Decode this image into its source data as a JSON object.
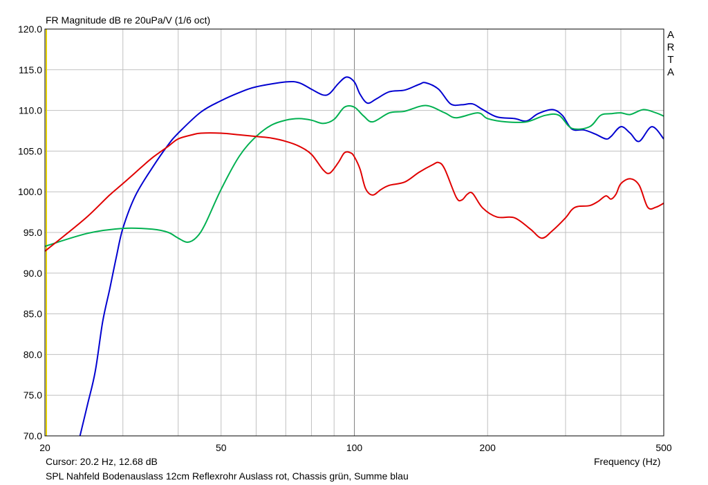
{
  "header": {
    "title": "FR Magnitude dB re 20uPa/V (1/6 oct)"
  },
  "footer": {
    "cursor": "Cursor: 20.2 Hz, 12.68 dB",
    "caption": "SPL Nahfeld Bodenauslass 12cm Reflexrohr Auslass rot, Chassis grün, Summe blau"
  },
  "watermark": [
    "A",
    "R",
    "T",
    "A"
  ],
  "chart_data": {
    "type": "line",
    "title": "FR Magnitude dB re 20uPa/V (1/6 oct)",
    "xlabel": "Frequency (Hz)",
    "ylabel": "",
    "xscale": "log",
    "xlim": [
      20,
      500
    ],
    "ylim": [
      70,
      120
    ],
    "grid": true,
    "x_ticks": [
      {
        "value": 20,
        "label": "20"
      },
      {
        "value": 50,
        "label": "50"
      },
      {
        "value": 100,
        "label": "100"
      },
      {
        "value": 200,
        "label": "200"
      },
      {
        "value": 500,
        "label": "500"
      }
    ],
    "y_ticks": [
      {
        "value": 120,
        "label": "120.0"
      },
      {
        "value": 115,
        "label": "115.0"
      },
      {
        "value": 110,
        "label": "110.0"
      },
      {
        "value": 105,
        "label": "105.0"
      },
      {
        "value": 100,
        "label": "100.0"
      },
      {
        "value": 95,
        "label": "95.0"
      },
      {
        "value": 90,
        "label": "90.0"
      },
      {
        "value": 85,
        "label": "85.0"
      },
      {
        "value": 80,
        "label": "80.0"
      },
      {
        "value": 75,
        "label": "75.0"
      },
      {
        "value": 70,
        "label": "70.0"
      }
    ],
    "colors": {
      "grid": "#c0c0c0",
      "axis": "#000000",
      "cursor_line": "#e6d200"
    },
    "series": [
      {
        "color": "#0000d0",
        "points": [
          [
            24,
            70
          ],
          [
            25,
            74
          ],
          [
            26,
            78
          ],
          [
            27,
            84
          ],
          [
            28,
            88
          ],
          [
            29,
            92
          ],
          [
            30,
            95.5
          ],
          [
            32,
            99.5
          ],
          [
            35,
            103
          ],
          [
            38,
            105.8
          ],
          [
            40,
            107.2
          ],
          [
            45,
            109.8
          ],
          [
            50,
            111.2
          ],
          [
            55,
            112.2
          ],
          [
            60,
            112.9
          ],
          [
            70,
            113.5
          ],
          [
            75,
            113.4
          ],
          [
            80,
            112.6
          ],
          [
            85,
            111.9
          ],
          [
            88,
            112.1
          ],
          [
            92,
            113.3
          ],
          [
            96,
            114.1
          ],
          [
            100,
            113.5
          ],
          [
            103,
            112
          ],
          [
            107,
            110.9
          ],
          [
            112,
            111.4
          ],
          [
            120,
            112.3
          ],
          [
            130,
            112.5
          ],
          [
            140,
            113.2
          ],
          [
            145,
            113.4
          ],
          [
            155,
            112.6
          ],
          [
            165,
            110.8
          ],
          [
            175,
            110.7
          ],
          [
            185,
            110.8
          ],
          [
            195,
            110.1
          ],
          [
            210,
            109.2
          ],
          [
            230,
            109
          ],
          [
            245,
            108.7
          ],
          [
            260,
            109.6
          ],
          [
            280,
            110.1
          ],
          [
            295,
            109.4
          ],
          [
            310,
            107.7
          ],
          [
            330,
            107.6
          ],
          [
            350,
            107.1
          ],
          [
            370,
            106.5
          ],
          [
            380,
            106.8
          ],
          [
            400,
            108
          ],
          [
            420,
            107.2
          ],
          [
            440,
            106.2
          ],
          [
            470,
            108
          ],
          [
            500,
            106.5
          ]
        ]
      },
      {
        "color": "#00b050",
        "points": [
          [
            20,
            93.3
          ],
          [
            25,
            94.9
          ],
          [
            30,
            95.5
          ],
          [
            35,
            95.4
          ],
          [
            38,
            95
          ],
          [
            40,
            94.3
          ],
          [
            42,
            93.8
          ],
          [
            44,
            94.4
          ],
          [
            46,
            96
          ],
          [
            50,
            100.3
          ],
          [
            55,
            104.4
          ],
          [
            60,
            106.8
          ],
          [
            65,
            108.2
          ],
          [
            70,
            108.8
          ],
          [
            75,
            109
          ],
          [
            80,
            108.8
          ],
          [
            85,
            108.4
          ],
          [
            90,
            108.9
          ],
          [
            95,
            110.4
          ],
          [
            100,
            110.4
          ],
          [
            105,
            109.3
          ],
          [
            110,
            108.6
          ],
          [
            120,
            109.7
          ],
          [
            130,
            109.9
          ],
          [
            145,
            110.6
          ],
          [
            160,
            109.7
          ],
          [
            170,
            109.1
          ],
          [
            190,
            109.7
          ],
          [
            200,
            109
          ],
          [
            220,
            108.6
          ],
          [
            245,
            108.6
          ],
          [
            270,
            109.4
          ],
          [
            290,
            109.4
          ],
          [
            310,
            107.8
          ],
          [
            340,
            108
          ],
          [
            360,
            109.4
          ],
          [
            380,
            109.6
          ],
          [
            400,
            109.7
          ],
          [
            420,
            109.5
          ],
          [
            450,
            110.1
          ],
          [
            480,
            109.7
          ],
          [
            500,
            109.3
          ]
        ]
      },
      {
        "color": "#e00000",
        "points": [
          [
            20,
            92.7
          ],
          [
            22,
            94.5
          ],
          [
            25,
            97
          ],
          [
            28,
            99.6
          ],
          [
            30,
            101
          ],
          [
            33,
            103
          ],
          [
            35,
            104.2
          ],
          [
            38,
            105.6
          ],
          [
            40,
            106.5
          ],
          [
            43,
            107
          ],
          [
            45,
            107.2
          ],
          [
            50,
            107.2
          ],
          [
            55,
            107
          ],
          [
            60,
            106.8
          ],
          [
            65,
            106.6
          ],
          [
            70,
            106.2
          ],
          [
            75,
            105.6
          ],
          [
            80,
            104.6
          ],
          [
            85,
            102.7
          ],
          [
            88,
            102.3
          ],
          [
            92,
            103.6
          ],
          [
            95,
            104.8
          ],
          [
            98,
            104.8
          ],
          [
            100,
            104.3
          ],
          [
            103,
            102.8
          ],
          [
            106,
            100.4
          ],
          [
            110,
            99.6
          ],
          [
            115,
            100.3
          ],
          [
            120,
            100.8
          ],
          [
            130,
            101.2
          ],
          [
            140,
            102.4
          ],
          [
            150,
            103.3
          ],
          [
            155,
            103.6
          ],
          [
            160,
            102.8
          ],
          [
            170,
            99.3
          ],
          [
            175,
            99
          ],
          [
            180,
            99.7
          ],
          [
            185,
            99.8
          ],
          [
            195,
            98
          ],
          [
            210,
            96.9
          ],
          [
            230,
            96.8
          ],
          [
            250,
            95.4
          ],
          [
            265,
            94.3
          ],
          [
            280,
            95.2
          ],
          [
            300,
            96.8
          ],
          [
            310,
            97.8
          ],
          [
            320,
            98.2
          ],
          [
            340,
            98.3
          ],
          [
            355,
            98.8
          ],
          [
            370,
            99.5
          ],
          [
            380,
            99.1
          ],
          [
            390,
            99.7
          ],
          [
            400,
            101
          ],
          [
            420,
            101.6
          ],
          [
            440,
            100.8
          ],
          [
            460,
            98.1
          ],
          [
            480,
            98.1
          ],
          [
            500,
            98.6
          ]
        ]
      }
    ]
  }
}
